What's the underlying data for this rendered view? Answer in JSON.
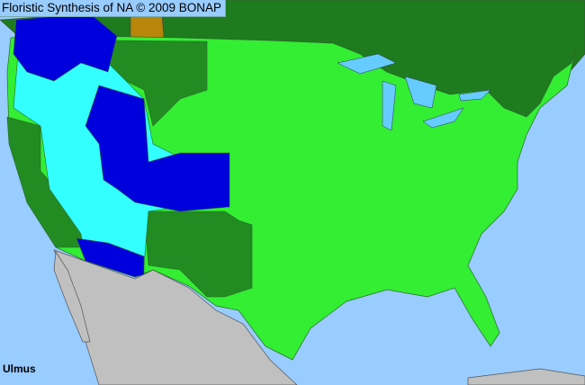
{
  "title": "Floristic Synthesis of NA © 2009 BONAP",
  "taxon": "Ulmus",
  "colors": {
    "ocean": "#99ccff",
    "canada_present": "#1e7b1e",
    "native_present": "#33ee33",
    "state_dark": "#228b22",
    "introduced": "#0000dd",
    "absent_cyan": "#33ffff",
    "brown": "#b8860b",
    "mexico": "#c0c0c0",
    "lakes": "#66ccff"
  }
}
